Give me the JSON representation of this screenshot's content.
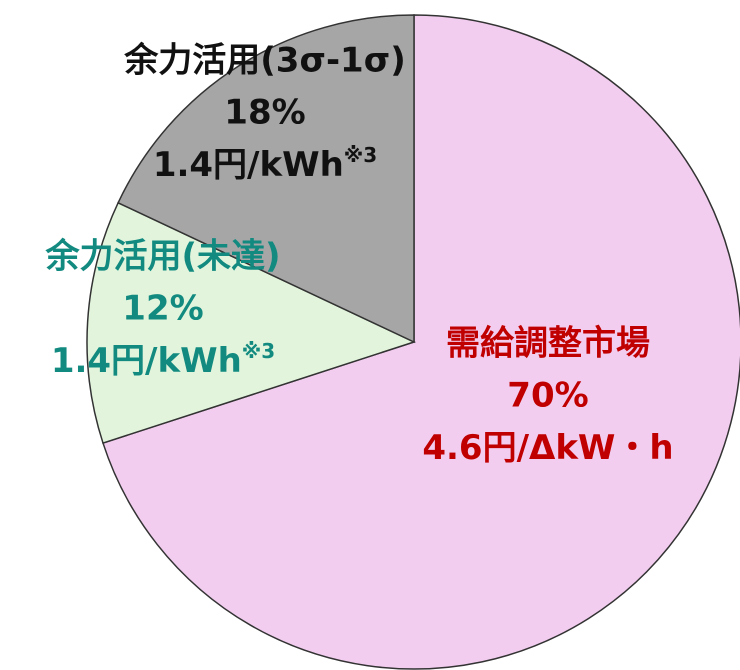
{
  "chart_data": {
    "type": "pie",
    "categories": [
      "需給調整市場",
      "余力活用(未達)",
      "余力活用(3σ-1σ)"
    ],
    "values": [
      70,
      12,
      18
    ],
    "value_labels": [
      "70%",
      "12%",
      "18%"
    ],
    "prices": [
      "4.6円/ΔkW・h",
      "1.4円/kWh",
      "1.4円/kWh"
    ],
    "notes": [
      null,
      "※3",
      "※3"
    ],
    "colors": [
      "#f2cdef",
      "#e2f5dc",
      "#a6a6a6"
    ],
    "label_colors": [
      "#c00000",
      "#138a80",
      "#111111"
    ]
  }
}
